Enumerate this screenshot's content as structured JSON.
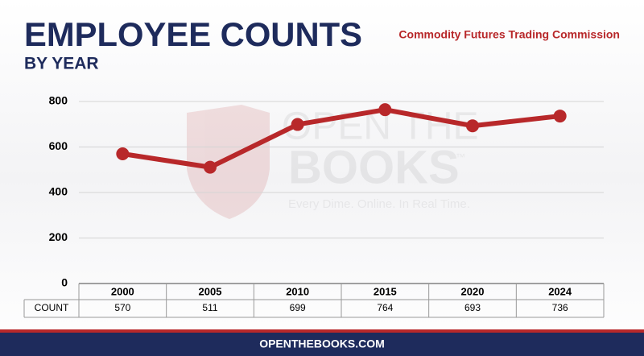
{
  "chart_data": {
    "type": "line",
    "title": "EMPLOYEE COUNTS",
    "subtitle": "BY YEAR",
    "agency": "Commodity Futures Trading Commission",
    "row_label": "COUNT",
    "categories": [
      "2000",
      "2005",
      "2010",
      "2015",
      "2020",
      "2024"
    ],
    "values": [
      570,
      511,
      699,
      764,
      693,
      736
    ],
    "color": "#b8282a",
    "ylim": [
      0,
      800
    ],
    "yticks": [
      0,
      200,
      400,
      600,
      800
    ],
    "grid": true
  },
  "watermark": {
    "line1": "OPEN THE",
    "line2": "BOOKS",
    "tm": "™",
    "tagline": "Every Dime. Online. In Real Time."
  },
  "footer": "OPENTHEBOOKS.COM"
}
